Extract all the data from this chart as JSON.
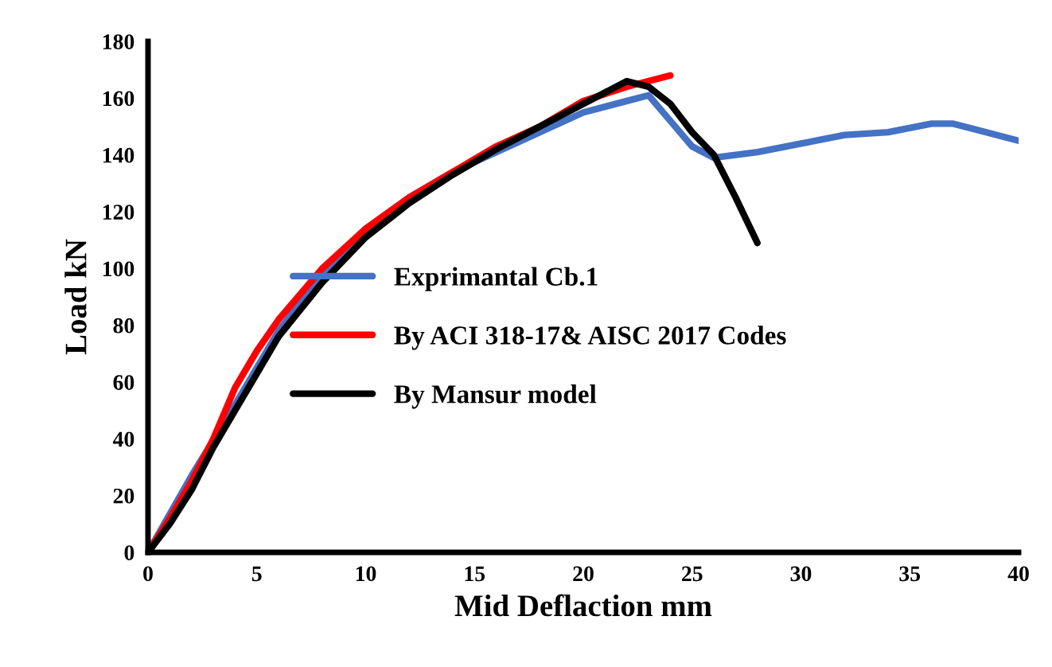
{
  "chart_data": {
    "type": "line",
    "xlabel": "Mid Deflaction mm",
    "ylabel": "Load kN",
    "xlim": [
      0,
      40
    ],
    "ylim": [
      0,
      180
    ],
    "xticks": [
      0,
      5,
      10,
      15,
      20,
      25,
      30,
      35,
      40
    ],
    "yticks": [
      0,
      20,
      40,
      60,
      80,
      100,
      120,
      140,
      160,
      180
    ],
    "grid": false,
    "legend": "center",
    "line_style": "solid",
    "marker": "none",
    "series": [
      {
        "name": "Exprimantal Cb.1",
        "color": "#4472c4",
        "x": [
          0,
          2,
          4,
          6,
          8,
          10,
          12,
          14,
          16,
          18,
          20,
          22,
          23,
          24,
          25,
          26,
          28,
          30,
          32,
          34,
          36,
          37,
          38,
          40
        ],
        "values": [
          0,
          27,
          52,
          78,
          98,
          114,
          125,
          134,
          141,
          148,
          155,
          159,
          161,
          152,
          143,
          139,
          141,
          144,
          147,
          148,
          151,
          151,
          149,
          145
        ]
      },
      {
        "name": "By ACI 318-17& AISC 2017 Codes",
        "color": "#ff0000",
        "x": [
          0,
          1,
          2,
          3,
          4,
          5,
          6,
          8,
          10,
          12,
          14,
          16,
          18,
          20,
          22,
          24
        ],
        "values": [
          0,
          12,
          25,
          40,
          58,
          71,
          82,
          100,
          114,
          125,
          134,
          143,
          150,
          159,
          164,
          168
        ]
      },
      {
        "name": "By Mansur model",
        "color": "#000000",
        "x": [
          0,
          1,
          2,
          3,
          4,
          5,
          6,
          8,
          10,
          12,
          14,
          16,
          18,
          20,
          21,
          22,
          23,
          24,
          25,
          26,
          27,
          28
        ],
        "values": [
          0,
          10,
          22,
          37,
          50,
          63,
          76,
          95,
          111,
          123,
          133,
          142,
          150,
          158,
          162,
          166,
          164,
          158,
          148,
          140,
          125,
          109
        ]
      }
    ]
  }
}
